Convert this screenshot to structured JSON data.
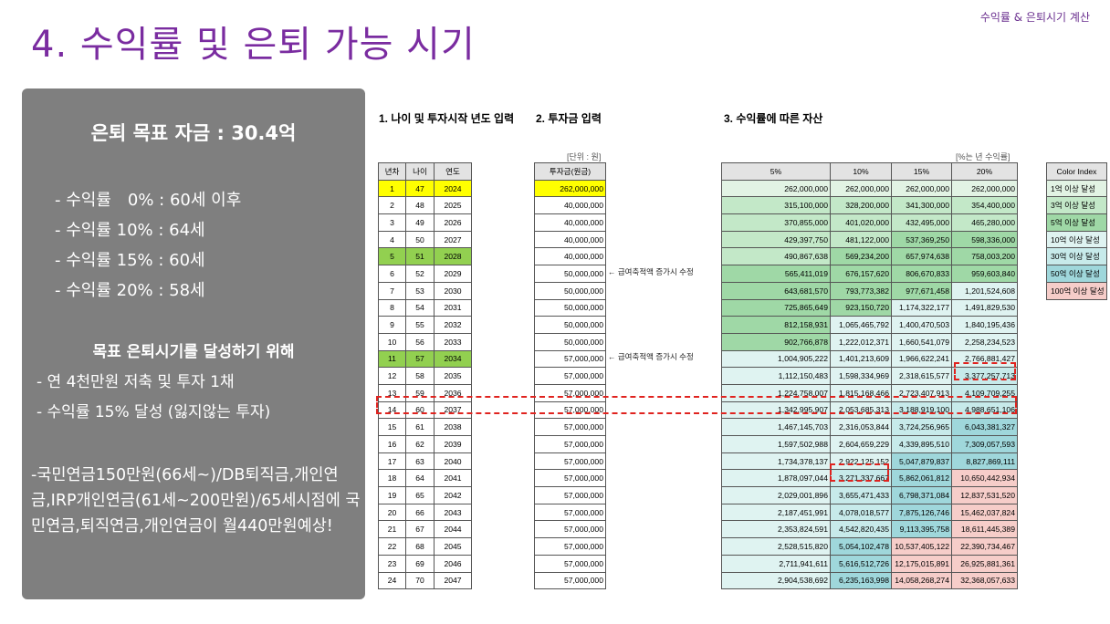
{
  "header": {
    "tag": "수익률 & 은퇴시기 계산",
    "title": "4. 수익률 및 은퇴 가능 시기"
  },
  "panel": {
    "goal": "은퇴 목표 자금 : 30.4억",
    "rates": [
      "- 수익률　0% : 60세 이후",
      "- 수익률 10% : 64세",
      "- 수익률 15% : 60세",
      "- 수익률 20% : 58세"
    ],
    "subhead": "목표 은퇴시기를 달성하기 위해",
    "actions": [
      "- 연 4천만원 저축 및 투자 1채",
      "- 수익률 15% 달성 (잃지않는 투자)"
    ],
    "pension": "-국민연금150만원(66세~)/DB퇴직금,개인연금,IRP개인연금(61세~200만원)/65세시점에 국민연금,퇴직연금,개인연금이 월440만원예상!"
  },
  "sheet": {
    "sections": [
      "1. 나이 및 투자시작 년도 입력",
      "2. 투자금 입력",
      "3. 수익률에 따른 자산"
    ],
    "unit_label": "[단위 : 원]",
    "rate_label": "[%는 년 수익률]",
    "age_headers": [
      "년차",
      "나이",
      "연도"
    ],
    "invest_header": "투자금(원금)",
    "rate_headers": [
      "5%",
      "10%",
      "15%",
      "20%"
    ],
    "note": "← 급여축적액 증가시 수정",
    "rows": [
      [
        "1",
        "47",
        "2024",
        "262,000,000",
        "262,000,000",
        "262,000,000",
        "262,000,000",
        "262,000,000"
      ],
      [
        "2",
        "48",
        "2025",
        "40,000,000",
        "315,100,000",
        "328,200,000",
        "341,300,000",
        "354,400,000"
      ],
      [
        "3",
        "49",
        "2026",
        "40,000,000",
        "370,855,000",
        "401,020,000",
        "432,495,000",
        "465,280,000"
      ],
      [
        "4",
        "50",
        "2027",
        "40,000,000",
        "429,397,750",
        "481,122,000",
        "537,369,250",
        "598,336,000"
      ],
      [
        "5",
        "51",
        "2028",
        "40,000,000",
        "490,867,638",
        "569,234,200",
        "657,974,638",
        "758,003,200"
      ],
      [
        "6",
        "52",
        "2029",
        "50,000,000",
        "565,411,019",
        "676,157,620",
        "806,670,833",
        "959,603,840"
      ],
      [
        "7",
        "53",
        "2030",
        "50,000,000",
        "643,681,570",
        "793,773,382",
        "977,671,458",
        "1,201,524,608"
      ],
      [
        "8",
        "54",
        "2031",
        "50,000,000",
        "725,865,649",
        "923,150,720",
        "1,174,322,177",
        "1,491,829,530"
      ],
      [
        "9",
        "55",
        "2032",
        "50,000,000",
        "812,158,931",
        "1,065,465,792",
        "1,400,470,503",
        "1,840,195,436"
      ],
      [
        "10",
        "56",
        "2033",
        "50,000,000",
        "902,766,878",
        "1,222,012,371",
        "1,660,541,079",
        "2,258,234,523"
      ],
      [
        "11",
        "57",
        "2034",
        "57,000,000",
        "1,004,905,222",
        "1,401,213,609",
        "1,966,622,241",
        "2,766,881,427"
      ],
      [
        "12",
        "58",
        "2035",
        "57,000,000",
        "1,112,150,483",
        "1,598,334,969",
        "2,318,615,577",
        "3,377,257,713"
      ],
      [
        "13",
        "59",
        "2036",
        "57,000,000",
        "1,224,758,007",
        "1,815,168,466",
        "2,723,407,913",
        "4,109,709,255"
      ],
      [
        "14",
        "60",
        "2037",
        "57,000,000",
        "1,342,995,907",
        "2,053,685,313",
        "3,188,919,100",
        "4,988,651,106"
      ],
      [
        "15",
        "61",
        "2038",
        "57,000,000",
        "1,467,145,703",
        "2,316,053,844",
        "3,724,256,965",
        "6,043,381,327"
      ],
      [
        "16",
        "62",
        "2039",
        "57,000,000",
        "1,597,502,988",
        "2,604,659,229",
        "4,339,895,510",
        "7,309,057,593"
      ],
      [
        "17",
        "63",
        "2040",
        "57,000,000",
        "1,734,378,137",
        "2,922,125,152",
        "5,047,879,837",
        "8,827,869,111"
      ],
      [
        "18",
        "64",
        "2041",
        "57,000,000",
        "1,878,097,044",
        "3,271,337,667",
        "5,862,061,812",
        "10,650,442,934"
      ],
      [
        "19",
        "65",
        "2042",
        "57,000,000",
        "2,029,001,896",
        "3,655,471,433",
        "6,798,371,084",
        "12,837,531,520"
      ],
      [
        "20",
        "66",
        "2043",
        "57,000,000",
        "2,187,451,991",
        "4,078,018,577",
        "7,875,126,746",
        "15,462,037,824"
      ],
      [
        "21",
        "67",
        "2044",
        "57,000,000",
        "2,353,824,591",
        "4,542,820,435",
        "9,113,395,758",
        "18,611,445,389"
      ],
      [
        "22",
        "68",
        "2045",
        "57,000,000",
        "2,528,515,820",
        "5,054,102,478",
        "10,537,405,122",
        "22,390,734,467"
      ],
      [
        "23",
        "69",
        "2046",
        "57,000,000",
        "2,711,941,611",
        "5,616,512,726",
        "12,175,015,891",
        "26,925,881,361"
      ],
      [
        "24",
        "70",
        "2047",
        "57,000,000",
        "2,904,538,692",
        "6,235,163,998",
        "14,058,268,274",
        "32,368,057,633"
      ]
    ],
    "legend": {
      "header": "Color Index",
      "items": [
        "1억 이상 달성",
        "3억 이상 달성",
        "5억 이상 달성",
        "10억 이상 달성",
        "30억 이상 달성",
        "50억 이상 달성",
        "100억 이상 달성"
      ],
      "colors": [
        "#e2f3e4",
        "#c3e8c8",
        "#9fd8a6",
        "#dff3f1",
        "#c7eaea",
        "#9fd7db",
        "#f6cdc9"
      ]
    }
  }
}
